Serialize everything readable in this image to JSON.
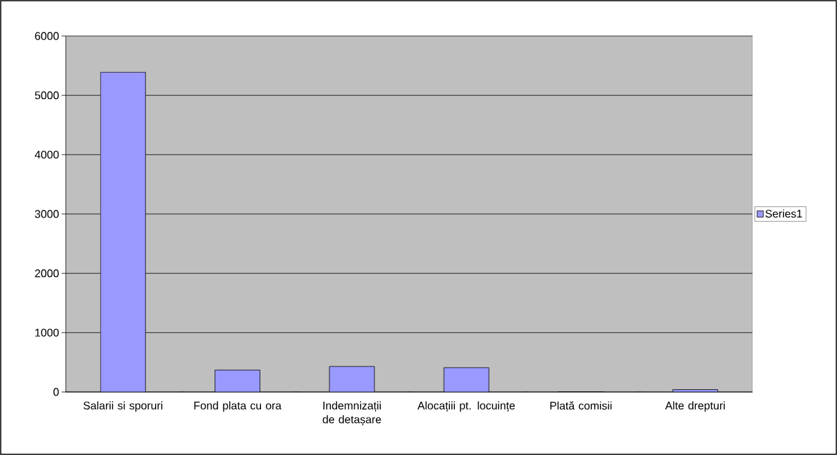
{
  "chart_data": {
    "type": "bar",
    "categories": [
      "Salarii si sporuri",
      "Fond plata cu ora",
      "Indemnizații de detașare",
      "Alocațiii pt. locuințe",
      "Plată comisii",
      "Alte drepturi"
    ],
    "series": [
      {
        "name": "Series1",
        "color": "#9999ff",
        "values": [
          5390,
          370,
          430,
          410,
          0,
          40
        ]
      }
    ],
    "ylim": [
      0,
      6000
    ],
    "yticks": [
      0,
      1000,
      2000,
      3000,
      4000,
      5000,
      6000
    ],
    "grid": "y",
    "legend": "right"
  }
}
